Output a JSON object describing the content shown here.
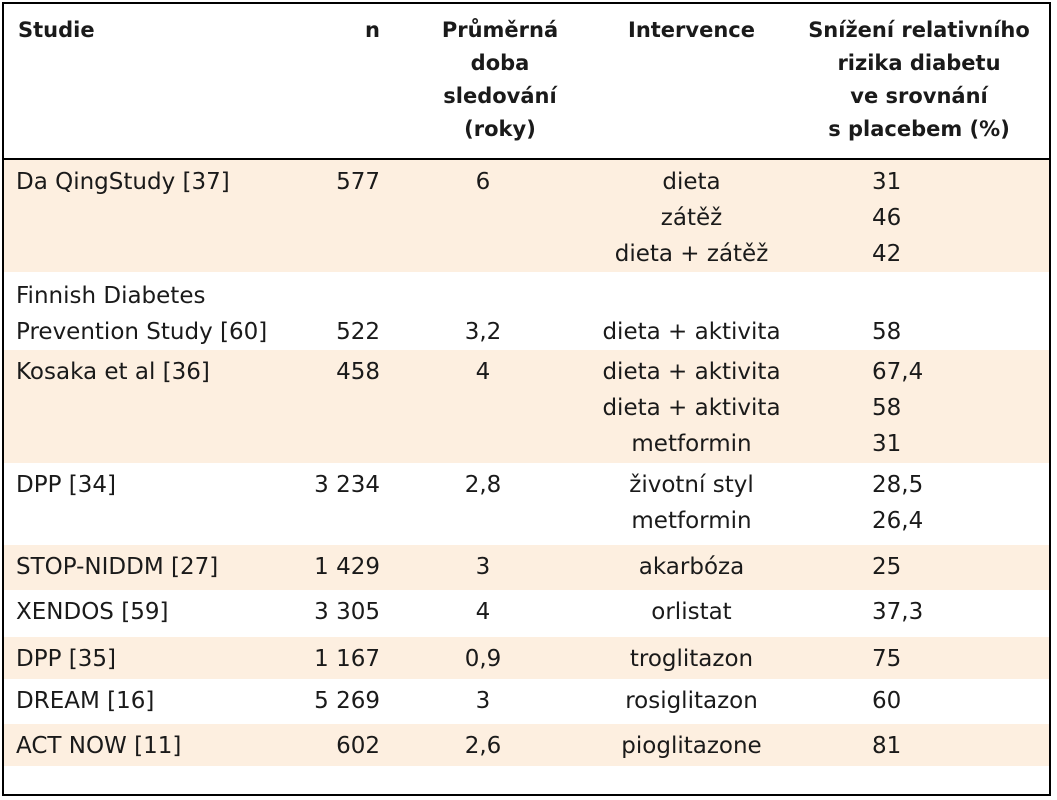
{
  "table": {
    "headers": {
      "study": [
        "Studie"
      ],
      "n": [
        "n"
      ],
      "follow_up": [
        "Průměrná",
        "doba",
        "sledování",
        "(roky)"
      ],
      "intervention": [
        "Intervence"
      ],
      "reduction": [
        "Snížení relativního",
        "rizika diabetu",
        "ve srovnání",
        "s placebem (%)"
      ]
    },
    "rows": [
      {
        "study": [
          "Da QingStudy [37]"
        ],
        "n": "577",
        "follow_up": "6",
        "interventions": [
          "dieta",
          "zátěž",
          "dieta + zátěž"
        ],
        "reductions": [
          "31",
          "46",
          "42"
        ],
        "shaded": true
      },
      {
        "study": [
          "Finnish Diabetes",
          "Prevention Study [60]"
        ],
        "n": "522",
        "follow_up": "3,2",
        "interventions": [
          "dieta + aktivita"
        ],
        "reductions": [
          "58"
        ],
        "shaded": false
      },
      {
        "study": [
          "Kosaka et al [36]"
        ],
        "n": "458",
        "follow_up": "4",
        "interventions": [
          "dieta + aktivita",
          "dieta + aktivita",
          "metformin"
        ],
        "reductions": [
          "67,4",
          "58",
          "31"
        ],
        "shaded": true
      },
      {
        "study": [
          "DPP [34]"
        ],
        "n": "3 234",
        "follow_up": "2,8",
        "interventions": [
          "životní styl",
          "metformin"
        ],
        "reductions": [
          "28,5",
          "26,4"
        ],
        "shaded": false
      },
      {
        "study": [
          "STOP-NIDDM [27]"
        ],
        "n": "1 429",
        "follow_up": "3",
        "interventions": [
          "akarbóza"
        ],
        "reductions": [
          "25"
        ],
        "shaded": true
      },
      {
        "study": [
          "XENDOS [59]"
        ],
        "n": "3 305",
        "follow_up": "4",
        "interventions": [
          "orlistat"
        ],
        "reductions": [
          "37,3"
        ],
        "shaded": false
      },
      {
        "study": [
          "DPP [35]"
        ],
        "n": "1 167",
        "follow_up": "0,9",
        "interventions": [
          "troglitazon"
        ],
        "reductions": [
          "75"
        ],
        "shaded": true
      },
      {
        "study": [
          "DREAM [16]"
        ],
        "n": "5 269",
        "follow_up": "3",
        "interventions": [
          "rosiglitazon"
        ],
        "reductions": [
          "60"
        ],
        "shaded": false
      },
      {
        "study": [
          "ACT NOW [11]"
        ],
        "n": "602",
        "follow_up": "2,6",
        "interventions": [
          "pioglitazone"
        ],
        "reductions": [
          "81"
        ],
        "shaded": true
      }
    ]
  }
}
